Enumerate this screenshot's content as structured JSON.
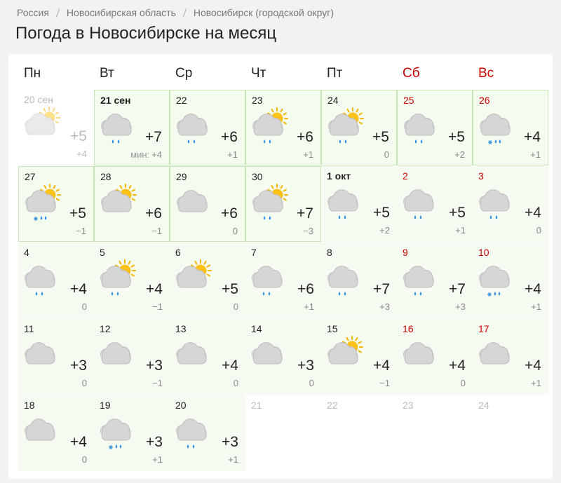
{
  "breadcrumbs": [
    "Россия",
    "Новосибирская область",
    "Новосибирск (городской округ)"
  ],
  "title": "Погода в Новосибирске на месяц",
  "weekdays": [
    "Пн",
    "Вт",
    "Ср",
    "Чт",
    "Пт",
    "Сб",
    "Вс"
  ],
  "days": [
    {
      "date": "20 сен",
      "day": "+5",
      "night": "+4",
      "icon": "sun-cloud",
      "state": "past"
    },
    {
      "date": "21 сен",
      "day": "+7",
      "night": "+4",
      "night_label": "мин:",
      "icon": "cloud-rain",
      "state": "today"
    },
    {
      "date": "22",
      "day": "+6",
      "night": "+1",
      "icon": "cloud-rain",
      "state": "near"
    },
    {
      "date": "23",
      "day": "+6",
      "night": "+1",
      "icon": "sun-cloud-rain",
      "state": "near"
    },
    {
      "date": "24",
      "day": "+5",
      "night": "0",
      "icon": "sun-cloud-rain",
      "state": "near"
    },
    {
      "date": "25",
      "day": "+5",
      "night": "+2",
      "icon": "cloud-rain",
      "state": "near"
    },
    {
      "date": "26",
      "day": "+4",
      "night": "+1",
      "icon": "cloud-rain-snow",
      "state": "near"
    },
    {
      "date": "27",
      "day": "+5",
      "night": "−1",
      "icon": "sun-cloud-rain-snow",
      "state": "near"
    },
    {
      "date": "28",
      "day": "+6",
      "night": "−1",
      "icon": "sun-cloud",
      "state": "near"
    },
    {
      "date": "29",
      "day": "+6",
      "night": "0",
      "icon": "cloud",
      "state": "near"
    },
    {
      "date": "30",
      "day": "+7",
      "night": "−3",
      "icon": "sun-cloud-rain",
      "state": "near"
    },
    {
      "date": "1 окт",
      "day": "+5",
      "night": "+2",
      "icon": "cloud-rain",
      "state": "far"
    },
    {
      "date": "2",
      "day": "+5",
      "night": "+1",
      "icon": "cloud-rain",
      "state": "far"
    },
    {
      "date": "3",
      "day": "+4",
      "night": "0",
      "icon": "cloud-rain",
      "state": "far"
    },
    {
      "date": "4",
      "day": "+4",
      "night": "0",
      "icon": "cloud-rain",
      "state": "far"
    },
    {
      "date": "5",
      "day": "+4",
      "night": "−1",
      "icon": "sun-cloud-rain",
      "state": "far"
    },
    {
      "date": "6",
      "day": "+5",
      "night": "0",
      "icon": "sun-cloud",
      "state": "far"
    },
    {
      "date": "7",
      "day": "+6",
      "night": "+1",
      "icon": "cloud-rain",
      "state": "far"
    },
    {
      "date": "8",
      "day": "+7",
      "night": "+3",
      "icon": "cloud-rain",
      "state": "far"
    },
    {
      "date": "9",
      "day": "+7",
      "night": "+3",
      "icon": "cloud-rain",
      "state": "far"
    },
    {
      "date": "10",
      "day": "+4",
      "night": "+1",
      "icon": "cloud-rain-snow",
      "state": "far"
    },
    {
      "date": "11",
      "day": "+3",
      "night": "0",
      "icon": "cloud",
      "state": "far"
    },
    {
      "date": "12",
      "day": "+3",
      "night": "−1",
      "icon": "cloud",
      "state": "far"
    },
    {
      "date": "13",
      "day": "+4",
      "night": "0",
      "icon": "cloud",
      "state": "far"
    },
    {
      "date": "14",
      "day": "+3",
      "night": "0",
      "icon": "cloud",
      "state": "far"
    },
    {
      "date": "15",
      "day": "+4",
      "night": "−1",
      "icon": "sun-cloud",
      "state": "far"
    },
    {
      "date": "16",
      "day": "+4",
      "night": "0",
      "icon": "cloud",
      "state": "far"
    },
    {
      "date": "17",
      "day": "+4",
      "night": "+1",
      "icon": "cloud",
      "state": "far"
    },
    {
      "date": "18",
      "day": "+4",
      "night": "0",
      "icon": "cloud",
      "state": "far"
    },
    {
      "date": "19",
      "day": "+3",
      "night": "+1",
      "icon": "cloud-rain-snow",
      "state": "far"
    },
    {
      "date": "20",
      "day": "+3",
      "night": "+1",
      "icon": "cloud-rain",
      "state": "far"
    },
    {
      "date": "21",
      "state": "out"
    },
    {
      "date": "22",
      "state": "out"
    },
    {
      "date": "23",
      "state": "out"
    },
    {
      "date": "24",
      "state": "out"
    }
  ]
}
